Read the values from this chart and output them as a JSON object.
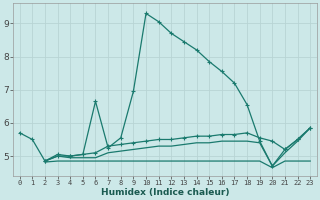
{
  "background_color": "#cce8e8",
  "grid_color": "#b8d4d4",
  "line_color": "#1a7a6e",
  "xlabel": "Humidex (Indice chaleur)",
  "xlim": [
    -0.5,
    23.5
  ],
  "ylim": [
    4.4,
    9.6
  ],
  "yticks": [
    5,
    6,
    7,
    8,
    9
  ],
  "xticks": [
    0,
    1,
    2,
    3,
    4,
    5,
    6,
    7,
    8,
    9,
    10,
    11,
    12,
    13,
    14,
    15,
    16,
    17,
    18,
    19,
    20,
    21,
    22,
    23
  ],
  "series1": {
    "points": [
      [
        0,
        5.7
      ],
      [
        1,
        5.5
      ],
      [
        2,
        4.85
      ],
      [
        3,
        5.05
      ],
      [
        4,
        5.0
      ],
      [
        5,
        5.05
      ],
      [
        6,
        6.65
      ],
      [
        7,
        5.25
      ],
      [
        8,
        5.55
      ],
      [
        9,
        6.95
      ],
      [
        10,
        9.3
      ],
      [
        11,
        9.05
      ],
      [
        12,
        8.7
      ],
      [
        13,
        8.45
      ],
      [
        14,
        8.2
      ],
      [
        15,
        7.85
      ],
      [
        16,
        7.55
      ],
      [
        17,
        7.2
      ],
      [
        18,
        6.55
      ],
      [
        19,
        5.45
      ],
      [
        20,
        4.7
      ],
      [
        21,
        5.2
      ],
      [
        22,
        5.5
      ],
      [
        23,
        5.85
      ]
    ],
    "marker": true
  },
  "series2": {
    "points": [
      [
        2,
        4.85
      ],
      [
        3,
        5.05
      ],
      [
        4,
        5.0
      ],
      [
        5,
        5.05
      ],
      [
        6,
        6.65
      ],
      [
        7,
        5.25
      ],
      [
        8,
        5.55
      ],
      [
        9,
        6.95
      ],
      [
        10,
        9.3
      ]
    ],
    "marker": false
  },
  "series3": {
    "points": [
      [
        2,
        4.85
      ],
      [
        3,
        5.0
      ],
      [
        4,
        5.0
      ],
      [
        5,
        5.05
      ],
      [
        6,
        5.1
      ],
      [
        7,
        5.3
      ],
      [
        8,
        5.35
      ],
      [
        9,
        5.4
      ],
      [
        10,
        5.45
      ],
      [
        11,
        5.5
      ],
      [
        12,
        5.5
      ],
      [
        13,
        5.55
      ],
      [
        14,
        5.6
      ],
      [
        15,
        5.6
      ],
      [
        16,
        5.65
      ],
      [
        17,
        5.65
      ],
      [
        18,
        5.7
      ],
      [
        19,
        5.55
      ],
      [
        20,
        5.45
      ],
      [
        21,
        5.2
      ],
      [
        22,
        5.5
      ],
      [
        23,
        5.85
      ]
    ],
    "marker": true
  },
  "series4": {
    "points": [
      [
        2,
        4.85
      ],
      [
        3,
        5.0
      ],
      [
        4,
        4.95
      ],
      [
        5,
        4.95
      ],
      [
        6,
        4.95
      ],
      [
        7,
        5.1
      ],
      [
        8,
        5.15
      ],
      [
        9,
        5.2
      ],
      [
        10,
        5.25
      ],
      [
        11,
        5.3
      ],
      [
        12,
        5.3
      ],
      [
        13,
        5.35
      ],
      [
        14,
        5.4
      ],
      [
        15,
        5.4
      ],
      [
        16,
        5.45
      ],
      [
        17,
        5.45
      ],
      [
        18,
        5.45
      ],
      [
        19,
        5.4
      ],
      [
        20,
        4.7
      ],
      [
        21,
        5.1
      ],
      [
        22,
        5.45
      ],
      [
        23,
        5.85
      ]
    ],
    "marker": false
  },
  "series5": {
    "points": [
      [
        2,
        4.82
      ],
      [
        3,
        4.85
      ],
      [
        4,
        4.85
      ],
      [
        5,
        4.85
      ],
      [
        6,
        4.85
      ],
      [
        7,
        4.85
      ],
      [
        8,
        4.85
      ],
      [
        9,
        4.85
      ],
      [
        10,
        4.85
      ],
      [
        11,
        4.85
      ],
      [
        12,
        4.85
      ],
      [
        13,
        4.85
      ],
      [
        14,
        4.85
      ],
      [
        15,
        4.85
      ],
      [
        16,
        4.85
      ],
      [
        17,
        4.85
      ],
      [
        18,
        4.85
      ],
      [
        19,
        4.85
      ],
      [
        20,
        4.65
      ],
      [
        21,
        4.85
      ],
      [
        22,
        4.85
      ],
      [
        23,
        4.85
      ]
    ],
    "marker": false
  }
}
